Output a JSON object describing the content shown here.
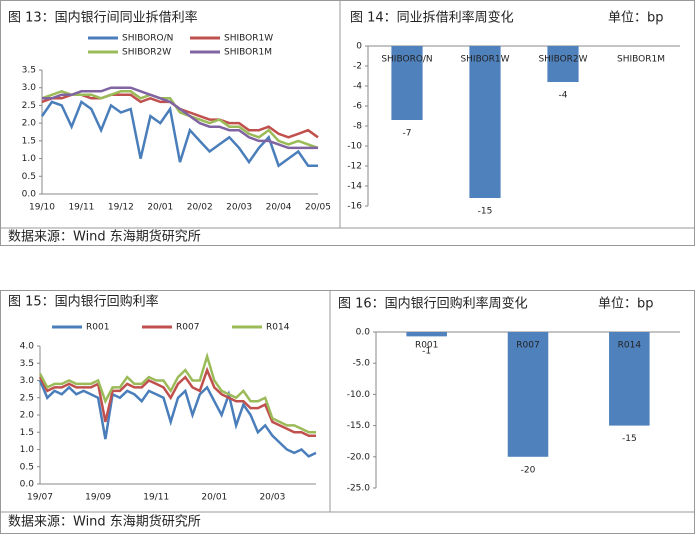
{
  "chart_data": [
    {
      "type": "line",
      "title": "图 13：国内银行间同业拆借利率",
      "categories": [
        "19/10",
        null,
        null,
        null,
        "19/11",
        null,
        null,
        null,
        "19/12",
        null,
        null,
        null,
        "20/01",
        null,
        null,
        null,
        "20/02",
        null,
        null,
        null,
        "20/03",
        null,
        null,
        null,
        "20/04",
        null,
        null,
        null,
        "20/05"
      ],
      "series": [
        {
          "name": "SHIBORO/N",
          "color": "#4a7ebb",
          "values": [
            2.2,
            2.6,
            2.5,
            1.9,
            2.6,
            2.4,
            1.8,
            2.5,
            2.3,
            2.4,
            1.0,
            2.2,
            2.0,
            2.4,
            0.9,
            1.8,
            1.5,
            1.2,
            1.4,
            1.6,
            1.3,
            0.9,
            1.3,
            1.6,
            0.8,
            1.0,
            1.2,
            0.8,
            0.8
          ]
        },
        {
          "name": "SHIBOR1W",
          "color": "#c0504d",
          "values": [
            2.6,
            2.7,
            2.7,
            2.8,
            2.8,
            2.7,
            2.7,
            2.8,
            2.8,
            2.8,
            2.6,
            2.7,
            2.6,
            2.6,
            2.4,
            2.3,
            2.2,
            2.1,
            2.1,
            2.0,
            2.0,
            1.8,
            1.8,
            1.9,
            1.7,
            1.6,
            1.7,
            1.8,
            1.6
          ]
        },
        {
          "name": "SHIBOR2W",
          "color": "#9bbb59",
          "values": [
            2.7,
            2.8,
            2.9,
            2.8,
            2.8,
            2.8,
            2.7,
            2.8,
            2.9,
            2.9,
            2.7,
            2.8,
            2.7,
            2.7,
            2.3,
            2.2,
            2.1,
            2.0,
            2.1,
            1.9,
            1.9,
            1.7,
            1.6,
            1.8,
            1.5,
            1.4,
            1.5,
            1.4,
            1.3
          ]
        },
        {
          "name": "SHIBOR1M",
          "color": "#8064a2",
          "values": [
            2.7,
            2.7,
            2.8,
            2.8,
            2.9,
            2.9,
            2.9,
            3.0,
            3.0,
            3.0,
            2.9,
            2.8,
            2.7,
            2.6,
            2.4,
            2.2,
            2.0,
            1.9,
            1.9,
            1.8,
            1.8,
            1.6,
            1.5,
            1.5,
            1.4,
            1.3,
            1.3,
            1.3,
            1.3
          ]
        }
      ],
      "ylim": [
        0,
        3.5
      ],
      "yticks": [
        {
          "value": 0,
          "label": "0.0"
        },
        0.5,
        {
          "value": 1,
          "label": "1.0"
        },
        1.5,
        {
          "value": 2,
          "label": "2.0"
        },
        2.5,
        {
          "value": 3,
          "label": "3.0"
        },
        3.5
      ]
    },
    {
      "type": "bar",
      "title": "图 14：同业拆借利率周变化",
      "unit": "单位：bp",
      "categories": [
        "SHIBORO/N",
        "SHIBOR1W",
        "SHIBOR2W",
        "SHIBOR1M"
      ],
      "values": [
        -7.4,
        -15.2,
        -3.6,
        0
      ],
      "value_labels": [
        "-7",
        "-15",
        "-4",
        null
      ],
      "color": "#4f81bd",
      "ylim": [
        -16,
        0
      ],
      "yticks": [
        0,
        -2,
        -4,
        -6,
        -8,
        -10,
        -12,
        -14,
        -16
      ]
    },
    {
      "type": "line",
      "title": "图 15：国内银行回购利率",
      "categories": [
        "19/07",
        null,
        null,
        null,
        null,
        null,
        null,
        null,
        "19/09",
        null,
        null,
        null,
        null,
        null,
        null,
        null,
        "19/11",
        null,
        null,
        null,
        null,
        null,
        null,
        null,
        "20/01",
        null,
        null,
        null,
        null,
        null,
        null,
        null,
        "20/03",
        null,
        null,
        null,
        null,
        null,
        null
      ],
      "series": [
        {
          "name": "R001",
          "color": "#4a7ebb",
          "values": [
            3.0,
            2.5,
            2.7,
            2.6,
            2.8,
            2.6,
            2.7,
            2.6,
            2.5,
            1.3,
            2.6,
            2.5,
            2.7,
            2.6,
            2.4,
            2.7,
            2.6,
            2.5,
            1.8,
            2.5,
            2.7,
            2.0,
            2.6,
            2.8,
            2.4,
            2.0,
            2.6,
            1.7,
            2.3,
            2.0,
            1.5,
            1.7,
            1.4,
            1.2,
            1.0,
            0.9,
            1.0,
            0.8,
            0.9
          ]
        },
        {
          "name": "R007",
          "color": "#c0504d",
          "values": [
            3.1,
            2.7,
            2.8,
            2.8,
            2.9,
            2.8,
            2.8,
            2.8,
            2.9,
            1.8,
            2.7,
            2.7,
            2.9,
            2.8,
            2.8,
            3.0,
            2.9,
            2.8,
            2.5,
            2.9,
            3.1,
            2.8,
            2.7,
            3.3,
            2.8,
            2.6,
            2.5,
            2.4,
            2.4,
            2.2,
            2.2,
            2.3,
            1.8,
            1.7,
            1.6,
            1.5,
            1.5,
            1.4,
            1.4
          ]
        },
        {
          "name": "R014",
          "color": "#9bbb59",
          "values": [
            3.2,
            2.8,
            2.9,
            2.9,
            3.0,
            2.9,
            2.9,
            2.9,
            3.0,
            2.4,
            2.8,
            2.8,
            3.1,
            2.9,
            2.9,
            3.1,
            3.0,
            3.0,
            2.7,
            3.1,
            3.3,
            3.0,
            3.0,
            3.7,
            3.0,
            2.7,
            2.6,
            2.5,
            2.7,
            2.4,
            2.4,
            2.5,
            1.9,
            1.8,
            1.7,
            1.7,
            1.6,
            1.5,
            1.5
          ]
        }
      ],
      "ylim": [
        0,
        4
      ],
      "yticks": [
        {
          "value": 0,
          "label": "0.0"
        },
        0.5,
        {
          "value": 1,
          "label": "1.0"
        },
        1.5,
        {
          "value": 2,
          "label": "2.0"
        },
        2.5,
        {
          "value": 3,
          "label": "3.0"
        },
        3.5,
        {
          "value": 4,
          "label": "4.0"
        }
      ]
    },
    {
      "type": "bar",
      "title": "图 16：国内银行回购利率周变化",
      "unit": "单位：bp",
      "categories": [
        "R001",
        "R007",
        "R014"
      ],
      "values": [
        -0.7,
        -20,
        -15
      ],
      "value_labels": [
        "-1",
        "-20",
        "-15"
      ],
      "color": "#4f81bd",
      "ylim": [
        -25,
        0
      ],
      "yticks": [
        {
          "value": 0,
          "label": "0.0"
        },
        {
          "value": -5,
          "label": "-5.0"
        },
        {
          "value": -10,
          "label": "-10.0"
        },
        {
          "value": -15,
          "label": "-15.0"
        },
        {
          "value": -20,
          "label": "-20.0"
        },
        {
          "value": -25,
          "label": "-25.0"
        }
      ]
    }
  ],
  "sources": [
    "数据来源：Wind   东海期货研究所",
    "数据来源：Wind   东海期货研究所"
  ]
}
